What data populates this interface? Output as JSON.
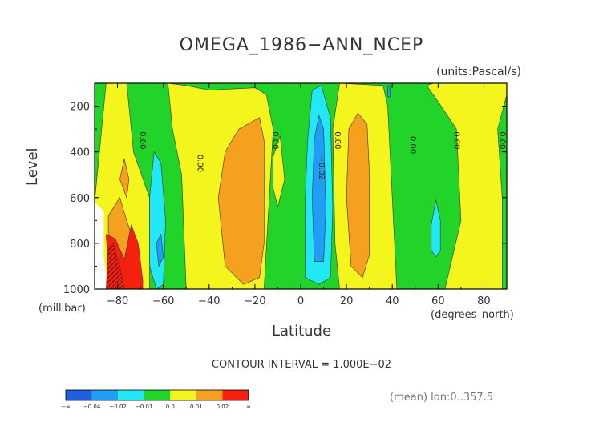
{
  "chart_data": {
    "type": "heatmap",
    "title": "OMEGA_1986−ANN_NCEP",
    "units": "(units:Pascal/s)",
    "xlabel": "Latitude",
    "ylabel": "Level",
    "x_unit": "(degrees_north)",
    "y_unit": "(millibar)",
    "xlim": [
      -90,
      90
    ],
    "ylim": [
      1000,
      100
    ],
    "x_ticks": [
      -80,
      -60,
      -40,
      -20,
      0,
      20,
      40,
      60,
      80
    ],
    "x_tick_labels": [
      "−80",
      "−60",
      "−40",
      "−20",
      "0",
      "20",
      "40",
      "60",
      "80"
    ],
    "y_ticks": [
      200,
      400,
      600,
      800,
      1000
    ],
    "y_tick_labels": [
      "200",
      "400",
      "600",
      "800",
      "1000"
    ],
    "contour_interval": "CONTOUR INTERVAL = 1.000E−02",
    "contour_labels": [
      {
        "lat": -70,
        "lev": 350,
        "text": "0.00"
      },
      {
        "lat": -45,
        "lev": 450,
        "text": "0.00"
      },
      {
        "lat": -12,
        "lev": 350,
        "text": "0.00"
      },
      {
        "lat": 8,
        "lev": 470,
        "text": "−0.02"
      },
      {
        "lat": 15,
        "lev": 350,
        "text": "0.00"
      },
      {
        "lat": 48,
        "lev": 370,
        "text": "0.00"
      },
      {
        "lat": 67,
        "lev": 350,
        "text": "0.00"
      },
      {
        "lat": 87,
        "lev": 350,
        "text": "0.00"
      }
    ],
    "legend": {
      "colors": [
        "#1f5fe0",
        "#1f9ef5",
        "#22e8f5",
        "#22d42a",
        "#f5f51e",
        "#f5a01e",
        "#f5200e"
      ],
      "labels": [
        "−∞",
        "−0.04",
        "−0.02",
        "−0.01",
        "0.0",
        "0.01",
        "0.02",
        "∞"
      ]
    },
    "regions": [
      {
        "level": "green",
        "color": "#22d42a",
        "poly": [
          [
            -90,
            100
          ],
          [
            90,
            100
          ],
          [
            90,
            1000
          ],
          [
            -90,
            1000
          ]
        ]
      },
      {
        "level": "yellow",
        "color": "#f5f51e",
        "poly": [
          [
            -90,
            620
          ],
          [
            -85,
            100
          ],
          [
            -76,
            100
          ],
          [
            -73,
            400
          ],
          [
            -66,
            600
          ],
          [
            -66,
            1000
          ],
          [
            -90,
            1000
          ]
        ]
      },
      {
        "level": "yellow",
        "color": "#f5f51e",
        "poly": [
          [
            -58,
            100
          ],
          [
            -56,
            300
          ],
          [
            -52,
            500
          ],
          [
            -50,
            1000
          ],
          [
            -16,
            1000
          ],
          [
            -12,
            300
          ],
          [
            -15,
            150
          ],
          [
            -20,
            120
          ],
          [
            -40,
            130
          ],
          [
            -50,
            110
          ]
        ]
      },
      {
        "level": "yellow",
        "color": "#f5f51e",
        "poly": [
          [
            17,
            100
          ],
          [
            14,
            300
          ],
          [
            15,
            800
          ],
          [
            17,
            1000
          ],
          [
            42,
            1000
          ],
          [
            40,
            600
          ],
          [
            38,
            200
          ],
          [
            36,
            110
          ]
        ]
      },
      {
        "level": "yellow",
        "color": "#f5f51e",
        "poly": [
          [
            55,
            110
          ],
          [
            58,
            100
          ],
          [
            90,
            100
          ],
          [
            90,
            150
          ],
          [
            86,
            300
          ],
          [
            88,
            600
          ],
          [
            88,
            1000
          ],
          [
            63,
            1000
          ],
          [
            70,
            700
          ],
          [
            68,
            300
          ],
          [
            60,
            180
          ]
        ]
      },
      {
        "level": "yellow",
        "color": "#f5f51e",
        "poly": [
          [
            -12,
            420
          ],
          [
            -9,
            330
          ],
          [
            -7,
            520
          ],
          [
            -10,
            640
          ],
          [
            -12,
            560
          ]
        ]
      },
      {
        "level": "orange",
        "color": "#f5a01e",
        "poly": [
          [
            -78,
            1000
          ],
          [
            -84,
            900
          ],
          [
            -84,
            680
          ],
          [
            -79,
            600
          ],
          [
            -76,
            700
          ],
          [
            -72,
            820
          ],
          [
            -70,
            1000
          ]
        ]
      },
      {
        "level": "orange",
        "color": "#f5a01e",
        "poly": [
          [
            -79,
            520
          ],
          [
            -77,
            430
          ],
          [
            -75,
            520
          ],
          [
            -76,
            600
          ]
        ]
      },
      {
        "level": "orange",
        "color": "#f5a01e",
        "poly": [
          [
            -33,
            900
          ],
          [
            -36,
            600
          ],
          [
            -33,
            400
          ],
          [
            -27,
            300
          ],
          [
            -18,
            250
          ],
          [
            -16,
            350
          ],
          [
            -16,
            800
          ],
          [
            -18,
            950
          ],
          [
            -25,
            980
          ]
        ]
      },
      {
        "level": "orange",
        "color": "#f5a01e",
        "poly": [
          [
            22,
            900
          ],
          [
            20,
            600
          ],
          [
            21,
            300
          ],
          [
            25,
            230
          ],
          [
            29,
            280
          ],
          [
            30,
            500
          ],
          [
            30,
            850
          ],
          [
            27,
            950
          ]
        ]
      },
      {
        "level": "red",
        "color": "#f5200e",
        "poly": [
          [
            -78,
            1000
          ],
          [
            -84,
            900
          ],
          [
            -85,
            760
          ],
          [
            -81,
            780
          ],
          [
            -77,
            870
          ],
          [
            -74,
            720
          ],
          [
            -71,
            800
          ],
          [
            -69,
            960
          ],
          [
            -69,
            1000
          ]
        ]
      },
      {
        "level": "lightcyan",
        "color": "#22e8f5",
        "poly": [
          [
            -66,
            900
          ],
          [
            -66,
            600
          ],
          [
            -64,
            400
          ],
          [
            -61,
            450
          ],
          [
            -59,
            700
          ],
          [
            -60,
            980
          ],
          [
            -63,
            1000
          ]
        ]
      },
      {
        "level": "lightcyan",
        "color": "#22e8f5",
        "poly": [
          [
            2,
            950
          ],
          [
            2,
            600
          ],
          [
            3,
            350
          ],
          [
            5,
            130
          ],
          [
            9,
            110
          ],
          [
            13,
            250
          ],
          [
            14,
            650
          ],
          [
            13,
            950
          ],
          [
            8,
            980
          ]
        ]
      },
      {
        "level": "lightcyan",
        "color": "#22e8f5",
        "poly": [
          [
            57,
            830
          ],
          [
            57,
            720
          ],
          [
            59,
            610
          ],
          [
            61,
            700
          ],
          [
            61,
            830
          ],
          [
            59,
            860
          ]
        ]
      },
      {
        "level": "cyan",
        "color": "#1f9ef5",
        "poly": [
          [
            6,
            880
          ],
          [
            5,
            600
          ],
          [
            6,
            340
          ],
          [
            8,
            240
          ],
          [
            10,
            300
          ],
          [
            11,
            650
          ],
          [
            10,
            880
          ]
        ]
      },
      {
        "level": "cyan",
        "color": "#1f9ef5",
        "poly": [
          [
            -62,
            900
          ],
          [
            -63,
            800
          ],
          [
            -61,
            760
          ],
          [
            -60,
            860
          ]
        ]
      },
      {
        "level": "cyan",
        "color": "#1f9ef5",
        "poly": [
          [
            38,
            160
          ],
          [
            38,
            110
          ],
          [
            39,
            110
          ],
          [
            39,
            160
          ]
        ]
      }
    ],
    "meaninfo": "(mean) lon:0..357.5"
  }
}
